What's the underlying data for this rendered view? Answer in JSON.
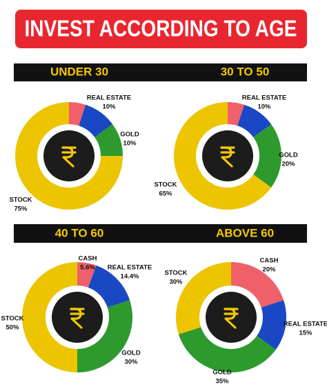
{
  "title": "INVEST ACCORDING TO AGE",
  "chart_data": [
    {
      "type": "pie",
      "title": "UNDER 30",
      "categories": [
        null,
        "REAL ESTATE",
        "GOLD",
        "STOCK"
      ],
      "values": [
        5,
        10,
        10,
        75
      ],
      "value_labels": [
        null,
        "10%",
        "10%",
        "75%"
      ],
      "colors": [
        "#f0606a",
        "#1a48c4",
        "#2e9a2e",
        "#ecc500"
      ]
    },
    {
      "type": "pie",
      "title": "30 TO 50",
      "categories": [
        null,
        "REAL ESTATE",
        "GOLD",
        "STOCK"
      ],
      "values": [
        5,
        10,
        20,
        65
      ],
      "value_labels": [
        null,
        "10%",
        "20%",
        "65%"
      ],
      "colors": [
        "#f0606a",
        "#1a48c4",
        "#2e9a2e",
        "#ecc500"
      ]
    },
    {
      "type": "pie",
      "title": "40 TO 60",
      "categories": [
        "CASH",
        "REAL ESTATE",
        "GOLD",
        "STOCK"
      ],
      "values": [
        5.6,
        14.4,
        30,
        50
      ],
      "value_labels": [
        "5.6%",
        "14.4%",
        "30%",
        "50%"
      ],
      "colors": [
        "#f0606a",
        "#1a48c4",
        "#2e9a2e",
        "#ecc500"
      ]
    },
    {
      "type": "pie",
      "title": "ABOVE 60",
      "categories": [
        "CASH",
        "REAL ESTATE",
        "GOLD",
        "STOCK"
      ],
      "values": [
        20,
        15,
        35,
        30
      ],
      "value_labels": [
        "20%",
        "15%",
        "35%",
        "30%"
      ],
      "colors": [
        "#f0606a",
        "#1a48c4",
        "#2e9a2e",
        "#ecc500"
      ]
    }
  ]
}
